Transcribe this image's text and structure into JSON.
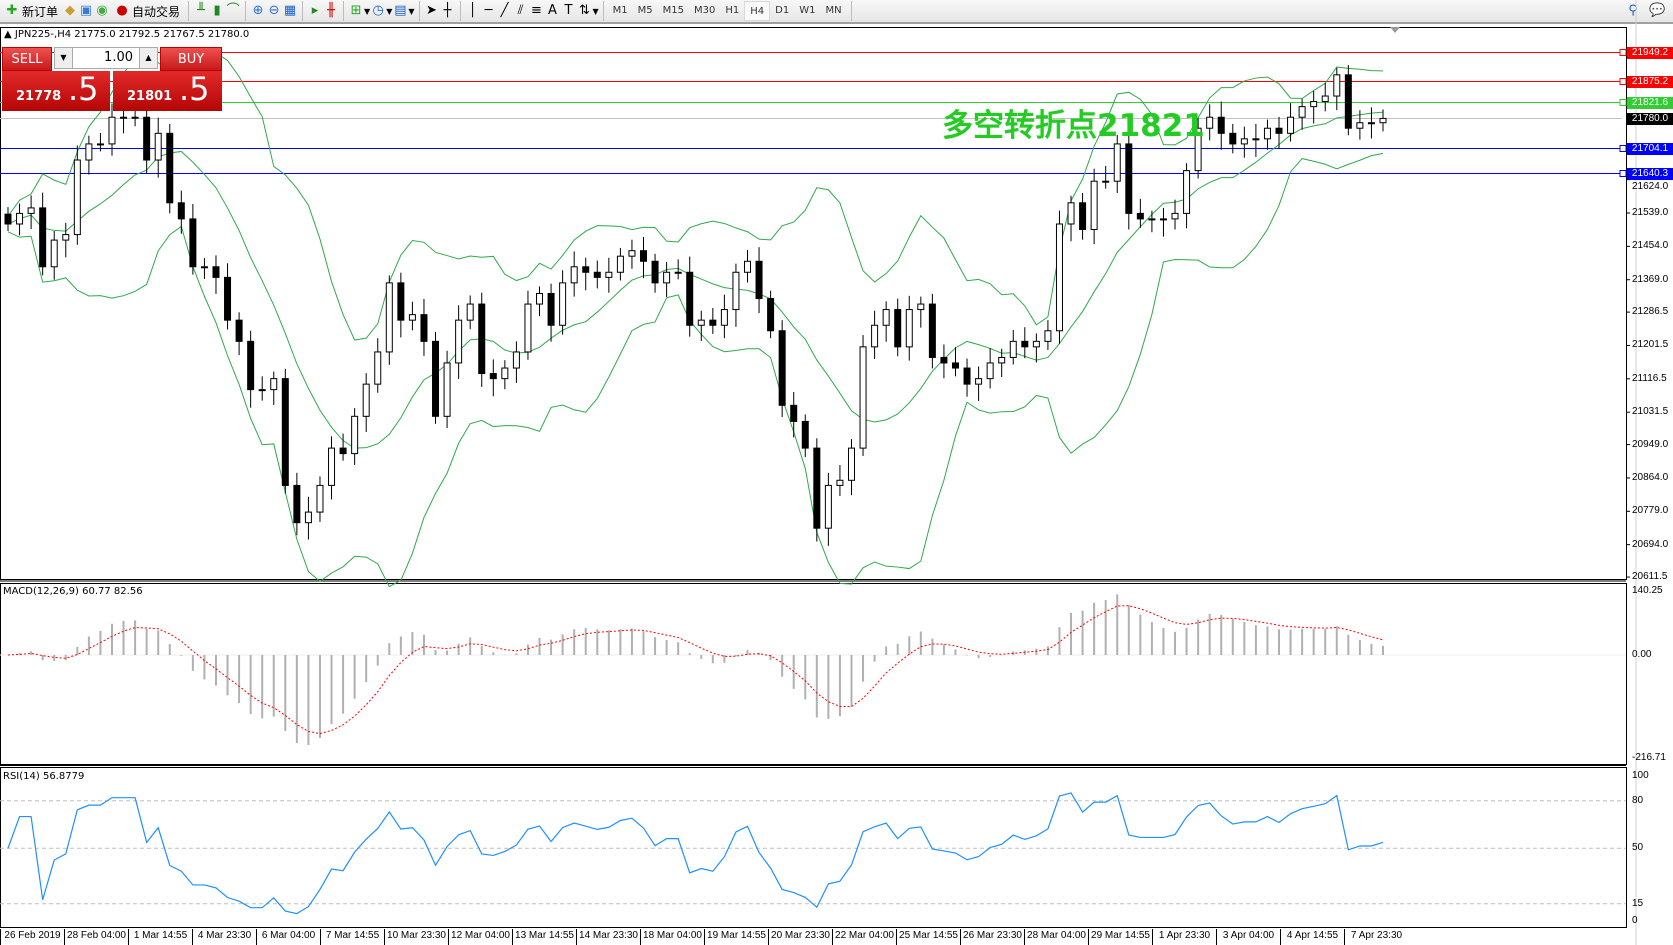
{
  "toolbar": {
    "new_order": "新订单",
    "auto_trading": "自动交易",
    "icons": [
      "new-order-icon",
      "history-icon",
      "market-watch-icon",
      "signals-icon",
      "auto-trading-icon",
      "bar-chart-icon",
      "candlestick-icon",
      "line-chart-icon",
      "zoom-in-icon",
      "zoom-out-icon",
      "tile-windows-icon",
      "auto-scroll-icon",
      "chart-shift-icon",
      "indicators-icon",
      "periods-icon",
      "templates-icon",
      "cursor-icon",
      "crosshair-icon",
      "vertical-line-icon",
      "horizontal-line-icon",
      "trendline-icon",
      "equidistant-channel-icon",
      "fibonacci-icon",
      "text-icon",
      "text-label-icon",
      "arrows-icon",
      "search-icon",
      "chat-icon"
    ],
    "timeframes": [
      "M1",
      "M5",
      "M15",
      "M30",
      "H1",
      "H4",
      "D1",
      "W1",
      "MN"
    ],
    "active_timeframe": "H4"
  },
  "chart": {
    "header": "JPN225-,H4  21775.0 21792.5 21767.5 21780.0",
    "annotation": "多空转折点21821",
    "trade_panel": {
      "sell_label": "SELL",
      "buy_label": "BUY",
      "lot": "1.00",
      "sell_price_main": "21778",
      "sell_price_big": ".5",
      "buy_price_main": "21801",
      "buy_price_big": ".5"
    },
    "price_levels": [
      {
        "value": "21949.2",
        "color": "#ff0000"
      },
      {
        "value": "21875.2",
        "color": "#ff0000"
      },
      {
        "value": "21821.6",
        "color": "#32cd32"
      },
      {
        "value": "21780.0",
        "color": "#000000",
        "line": "#c0c0c0"
      },
      {
        "value": "21704.1",
        "color": "#0000ff"
      },
      {
        "value": "21640.3",
        "color": "#0000ff"
      }
    ],
    "price_ticks": [
      "21624.0",
      "21539.0",
      "21454.0",
      "21369.0",
      "21286.5",
      "21201.5",
      "21116.5",
      "21031.5",
      "20949.0",
      "20864.0",
      "20779.0",
      "20694.0",
      "20611.5"
    ],
    "time_labels": [
      "26 Feb 2019",
      "28 Feb 04:00",
      "1 Mar 14:55",
      "4 Mar 23:30",
      "6 Mar 04:00",
      "7 Mar 14:55",
      "10 Mar 23:30",
      "12 Mar 04:00",
      "13 Mar 14:55",
      "14 Mar 23:30",
      "18 Mar 04:00",
      "19 Mar 14:55",
      "20 Mar 23:30",
      "22 Mar 04:00",
      "25 Mar 14:55",
      "26 Mar 23:30",
      "28 Mar 04:00",
      "29 Mar 14:55",
      "1 Apr 23:30",
      "3 Apr 04:00",
      "4 Apr 14:55",
      "7 Apr 23:30"
    ],
    "colors": {
      "bands": "#2eaa4a",
      "macd_hist": "#b0b0b0",
      "macd_signal": "#ff0000",
      "rsi": "#1e90ff"
    }
  },
  "macd": {
    "label": "MACD(12,26,9) 60.77 82.56",
    "ticks": [
      "140.25",
      "0.00",
      "-216.71"
    ],
    "range": [
      -216.71,
      140.25
    ]
  },
  "rsi": {
    "label": "RSI(14) 56.8779",
    "ticks": [
      "100",
      "80",
      "50",
      "15",
      "0"
    ],
    "levels": [
      80,
      50,
      15
    ]
  },
  "chart_data": {
    "type": "candlestick",
    "symbol": "JPN225-",
    "timeframe": "H4",
    "ylim": [
      20611.5,
      21949.2
    ],
    "close": [
      21511,
      21538,
      21552,
      21402,
      21470,
      21484,
      21674,
      21715,
      21715,
      21783,
      21783,
      21783,
      21674,
      21742,
      21565,
      21524,
      21402,
      21402,
      21375,
      21266,
      21212,
      21089,
      21089,
      21117,
      20845,
      20750,
      20777,
      20845,
      20940,
      20926,
      21021,
      21103,
      21185,
      21361,
      21266,
      21280,
      21212,
      21021,
      21157,
      21266,
      21307,
      21130,
      21117,
      21144,
      21185,
      21307,
      21334,
      21253,
      21361,
      21402,
      21388,
      21375,
      21388,
      21429,
      21443,
      21416,
      21361,
      21388,
      21388,
      21253,
      21266,
      21253,
      21293,
      21388,
      21416,
      21321,
      21239,
      21049,
      21008,
      20940,
      20736,
      20845,
      20858,
      20940,
      21198,
      21253,
      21293,
      21198,
      21293,
      21307,
      21171,
      21157,
      21144,
      21103,
      21117,
      21157,
      21171,
      21212,
      21198,
      21212,
      21239,
      21511,
      21565,
      21497,
      21620,
      21620,
      21715,
      21538,
      21524,
      21524,
      21524,
      21538,
      21647,
      21755,
      21783,
      21742,
      21715,
      21728,
      21728,
      21755,
      21742,
      21783,
      21810,
      21823,
      21837,
      21891,
      21755,
      21769,
      21769,
      21780
    ]
  }
}
